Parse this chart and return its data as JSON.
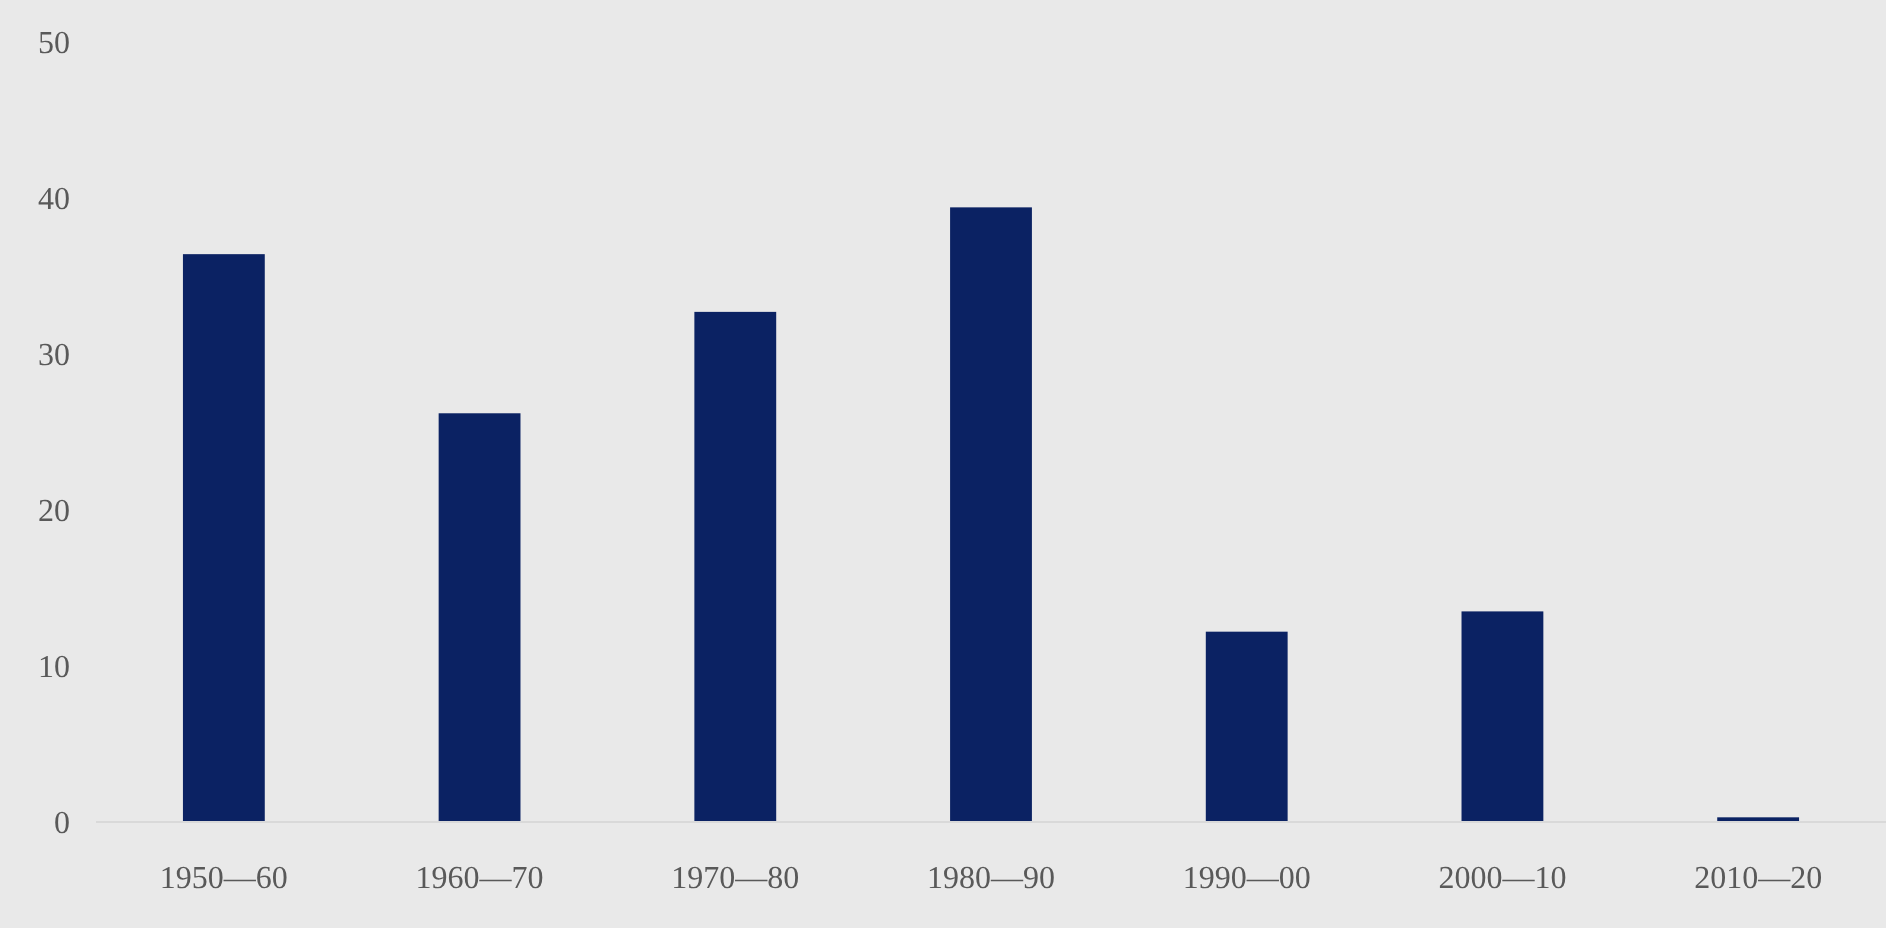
{
  "chart_data": {
    "type": "bar",
    "categories": [
      "1950—60",
      "1960—70",
      "1970—80",
      "1980—90",
      "1990—00",
      "2000—10",
      "2010—20"
    ],
    "values": [
      36.4,
      26.2,
      32.7,
      39.4,
      12.2,
      13.5,
      0.3
    ],
    "color": "#0b2263",
    "ylim": [
      0,
      50
    ],
    "yticks": [
      0,
      10,
      20,
      30,
      40,
      50
    ],
    "grid": false
  }
}
